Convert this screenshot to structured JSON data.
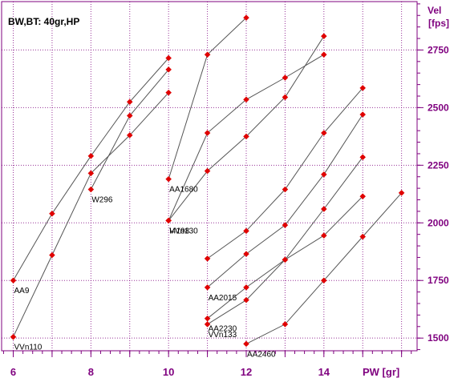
{
  "chart_data": {
    "type": "scatter",
    "title": "BW,BT: 40gr,HP",
    "xlabel": "PW [gr]",
    "ylabel": "Vel",
    "yunit": "[fps]",
    "xlim": [
      5.7,
      16.4
    ],
    "ylim": [
      1445,
      2960
    ],
    "xticks": [
      6,
      8,
      10,
      12,
      14
    ],
    "yticks": [
      1500,
      1750,
      2000,
      2250,
      2500,
      2750
    ],
    "grid": true,
    "legend": "none",
    "colors": {
      "frame": "#7f007f",
      "grid": "#7f007f",
      "line": "#555555",
      "marker": "#e00000",
      "text": "#000000"
    },
    "series": [
      {
        "name": "AA9",
        "label_at": 0,
        "x": [
          6,
          7,
          8,
          9,
          10
        ],
        "y": [
          1750,
          2040,
          2290,
          2525,
          2715
        ]
      },
      {
        "name": "W296",
        "label_at": 0,
        "x": [
          8,
          9,
          10
        ],
        "y": [
          2145,
          2465,
          2665
        ]
      },
      {
        "name": "VVn110",
        "label_at": 0,
        "x": [
          6,
          7,
          8,
          9,
          10
        ],
        "y": [
          1505,
          1860,
          2215,
          2380,
          2565
        ]
      },
      {
        "name": "AA1680",
        "label_at": 0,
        "x": [
          10,
          11,
          12
        ],
        "y": [
          2190,
          2730,
          2890
        ]
      },
      {
        "name": "I4198",
        "label_at": 0,
        "x": [
          10,
          11,
          12,
          13,
          14
        ],
        "y": [
          2010,
          2390,
          2535,
          2630,
          2730
        ]
      },
      {
        "name": "VVn130",
        "label_at": 0,
        "x": [
          10,
          11,
          12,
          13,
          14
        ],
        "y": [
          2010,
          2225,
          2375,
          2545,
          2810
        ]
      },
      {
        "name": "",
        "label_at": -1,
        "x": [
          11,
          12,
          13,
          14,
          15
        ],
        "y": [
          1845,
          1965,
          2145,
          2390,
          2585
        ]
      },
      {
        "name": "AA2015",
        "label_at": 0,
        "x": [
          11,
          12,
          13,
          14,
          15
        ],
        "y": [
          1720,
          1865,
          1990,
          2210,
          2470
        ]
      },
      {
        "name": "AA2230",
        "label_at": 0,
        "x": [
          11,
          12,
          13,
          14,
          15
        ],
        "y": [
          1585,
          1720,
          1840,
          2060,
          2285
        ]
      },
      {
        "name": "VVn133",
        "label_at": 0,
        "x": [
          11,
          12,
          13,
          14,
          15
        ],
        "y": [
          1560,
          1665,
          1840,
          1945,
          2115
        ]
      },
      {
        "name": "AA2460",
        "label_at": 0,
        "x": [
          12,
          13,
          14,
          15,
          16
        ],
        "y": [
          1475,
          1560,
          1750,
          1940,
          2130
        ]
      }
    ]
  }
}
